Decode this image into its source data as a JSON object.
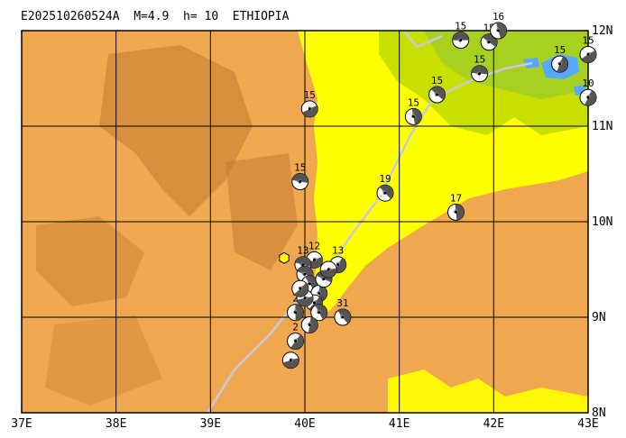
{
  "title": "E202510260524A  M=4.9  h= 10  ETHIOPIA",
  "axes": {
    "lon_labels": [
      "37E",
      "38E",
      "39E",
      "40E",
      "41E",
      "42E",
      "43E"
    ],
    "lat_labels": [
      "12N",
      "11N",
      "10N",
      "9N",
      "8N"
    ],
    "lon_range": [
      37,
      43
    ],
    "lat_range": [
      8,
      12
    ]
  },
  "colors": {
    "lowland_yellow": "#ffff00",
    "highland_orange": "#f0a850",
    "highland_dark": "#d08838",
    "green_lowland": "#c8e000",
    "lake_blue": "#55aaff",
    "border_gray": "#c8c8e0",
    "epicenter_yellow": "#ffff00"
  },
  "epicenter": {
    "lon": 39.78,
    "lat": 9.62
  },
  "chart_data": {
    "type": "scatter",
    "title": "E202510260524A  M=4.9  h= 10  ETHIOPIA",
    "xlabel": "",
    "ylabel": "",
    "xlim": [
      37,
      43
    ],
    "ylim": [
      8,
      12
    ],
    "events": [
      {
        "lon": 41.65,
        "lat": 11.9,
        "depth": "15"
      },
      {
        "lon": 41.95,
        "lat": 11.88,
        "depth": "15"
      },
      {
        "lon": 42.05,
        "lat": 12.0,
        "depth": "16"
      },
      {
        "lon": 42.7,
        "lat": 11.65,
        "depth": "15"
      },
      {
        "lon": 43.0,
        "lat": 11.75,
        "depth": "15"
      },
      {
        "lon": 41.85,
        "lat": 11.55,
        "depth": "15"
      },
      {
        "lon": 41.4,
        "lat": 11.33,
        "depth": "15"
      },
      {
        "lon": 41.15,
        "lat": 11.1,
        "depth": "15"
      },
      {
        "lon": 43.0,
        "lat": 11.3,
        "depth": "10"
      },
      {
        "lon": 40.05,
        "lat": 11.18,
        "depth": "15"
      },
      {
        "lon": 39.95,
        "lat": 10.42,
        "depth": "15"
      },
      {
        "lon": 40.85,
        "lat": 10.3,
        "depth": "19"
      },
      {
        "lon": 41.6,
        "lat": 10.1,
        "depth": "17"
      },
      {
        "lon": 40.35,
        "lat": 9.55,
        "depth": "13"
      },
      {
        "lon": 40.1,
        "lat": 9.6,
        "depth": "12"
      },
      {
        "lon": 39.98,
        "lat": 9.55,
        "depth": "13"
      },
      {
        "lon": 40.4,
        "lat": 9.0,
        "depth": "31"
      },
      {
        "lon": 39.9,
        "lat": 9.05,
        "depth": "2"
      },
      {
        "lon": 39.9,
        "lat": 8.75,
        "depth": "2"
      },
      {
        "lon": 39.85,
        "lat": 8.55,
        "depth": ""
      },
      {
        "lon": 40.0,
        "lat": 9.45,
        "depth": ""
      },
      {
        "lon": 40.05,
        "lat": 9.35,
        "depth": ""
      },
      {
        "lon": 40.15,
        "lat": 9.25,
        "depth": ""
      },
      {
        "lon": 40.1,
        "lat": 9.15,
        "depth": ""
      },
      {
        "lon": 40.0,
        "lat": 9.2,
        "depth": ""
      },
      {
        "lon": 40.2,
        "lat": 9.4,
        "depth": ""
      },
      {
        "lon": 40.15,
        "lat": 9.05,
        "depth": ""
      },
      {
        "lon": 40.05,
        "lat": 8.92,
        "depth": ""
      },
      {
        "lon": 39.95,
        "lat": 9.3,
        "depth": ""
      },
      {
        "lon": 40.25,
        "lat": 9.5,
        "depth": ""
      }
    ]
  }
}
